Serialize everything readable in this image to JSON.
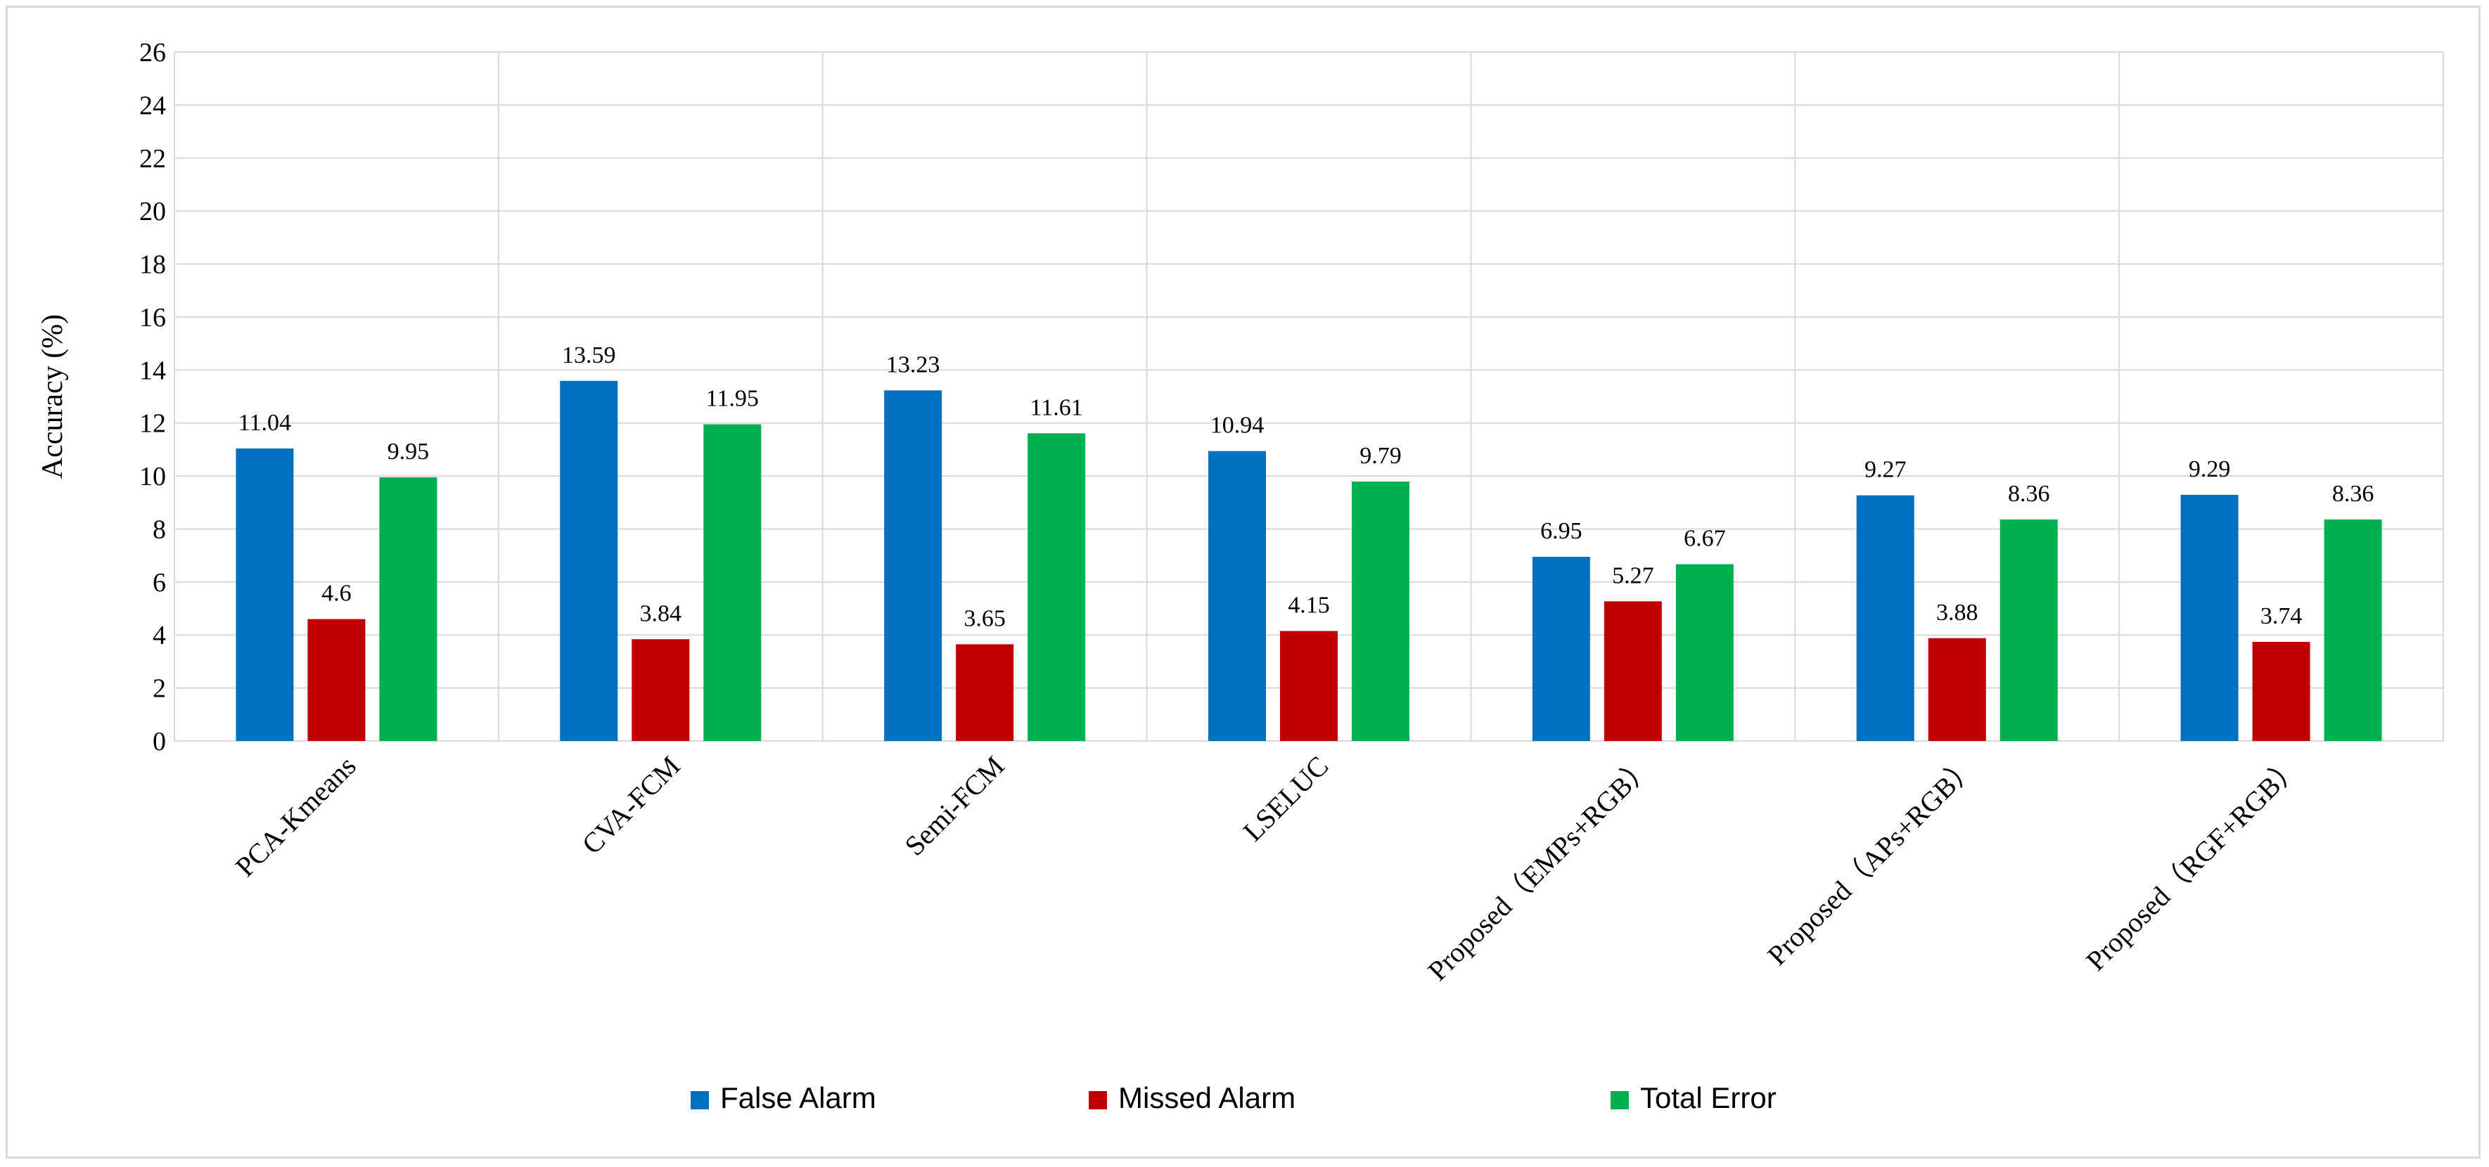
{
  "chart_data": {
    "type": "bar",
    "title": "",
    "xlabel": "",
    "ylabel": "Accuracy (%)",
    "ylim": [
      0,
      26
    ],
    "ytick_step": 2,
    "grid": true,
    "legend_position": "bottom",
    "categories": [
      "PCA-Kmeans",
      "CVA-FCM",
      "Semi-FCM",
      "LSELUC",
      "Proposed（EMPs+RGB）",
      "Proposed（APs+RGB）",
      "Proposed（RGF+RGB）"
    ],
    "series": [
      {
        "name": "False Alarm",
        "color": "#0070c0",
        "values": [
          11.04,
          13.59,
          13.23,
          10.94,
          6.95,
          9.27,
          9.29
        ]
      },
      {
        "name": "Missed Alarm",
        "color": "#c00000",
        "values": [
          4.6,
          3.84,
          3.65,
          4.15,
          5.27,
          3.88,
          3.74
        ]
      },
      {
        "name": "Total Error",
        "color": "#00b050",
        "values": [
          9.95,
          11.95,
          11.61,
          9.79,
          6.67,
          8.36,
          8.36
        ]
      }
    ]
  }
}
